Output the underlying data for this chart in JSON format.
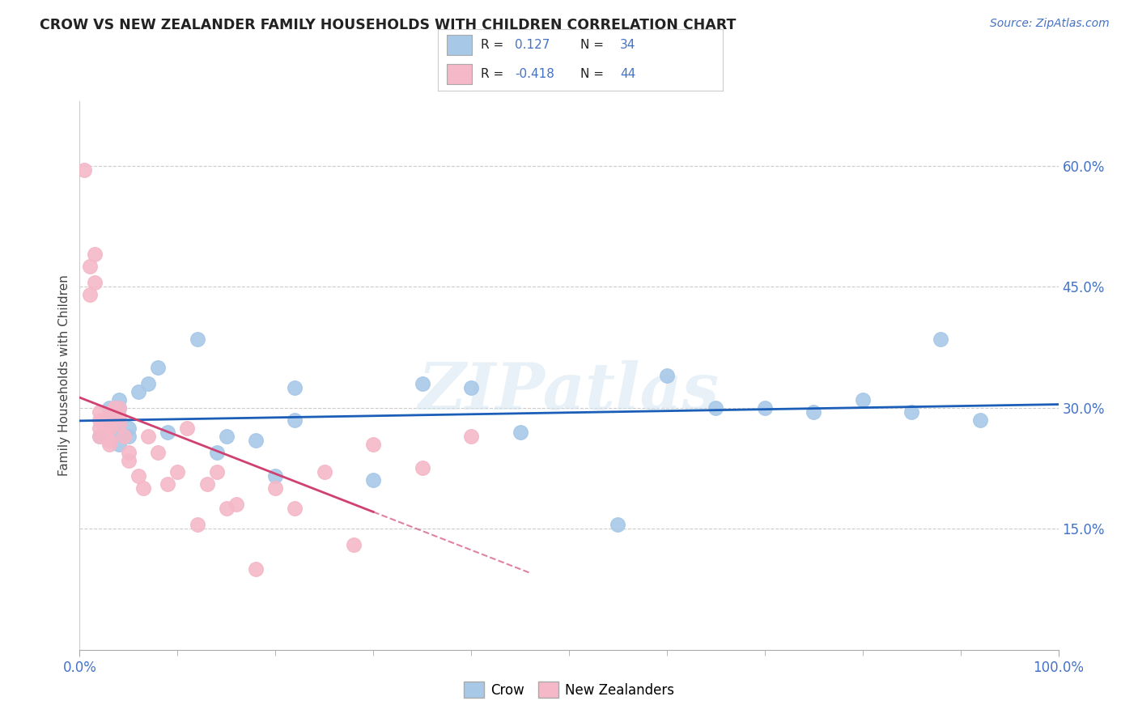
{
  "title": "CROW VS NEW ZEALANDER FAMILY HOUSEHOLDS WITH CHILDREN CORRELATION CHART",
  "source": "Source: ZipAtlas.com",
  "ylabel": "Family Households with Children",
  "xlim": [
    0.0,
    1.0
  ],
  "ylim": [
    0.0,
    0.68
  ],
  "ytick_positions": [
    0.15,
    0.3,
    0.45,
    0.6
  ],
  "ytick_labels": [
    "15.0%",
    "30.0%",
    "45.0%",
    "60.0%"
  ],
  "xtick_positions": [
    0.0,
    1.0
  ],
  "xtick_labels": [
    "0.0%",
    "100.0%"
  ],
  "crow_r": "0.127",
  "crow_n": "34",
  "nz_r": "-0.418",
  "nz_n": "44",
  "crow_color": "#a8c8e8",
  "nz_color": "#f4b8c8",
  "crow_line_color": "#1a5eb8",
  "nz_line_color": "#d04070",
  "tick_color": "#4472c4",
  "background_color": "#ffffff",
  "watermark": "ZIPatlas",
  "crow_points_x": [
    0.02,
    0.03,
    0.03,
    0.04,
    0.04,
    0.04,
    0.04,
    0.04,
    0.05,
    0.05,
    0.06,
    0.07,
    0.08,
    0.09,
    0.12,
    0.14,
    0.15,
    0.18,
    0.2,
    0.22,
    0.22,
    0.3,
    0.35,
    0.4,
    0.45,
    0.55,
    0.6,
    0.65,
    0.7,
    0.75,
    0.8,
    0.85,
    0.88,
    0.92
  ],
  "crow_points_y": [
    0.265,
    0.285,
    0.3,
    0.255,
    0.27,
    0.28,
    0.3,
    0.31,
    0.265,
    0.275,
    0.32,
    0.33,
    0.35,
    0.27,
    0.385,
    0.245,
    0.265,
    0.26,
    0.215,
    0.285,
    0.325,
    0.21,
    0.33,
    0.325,
    0.27,
    0.155,
    0.34,
    0.3,
    0.3,
    0.295,
    0.31,
    0.295,
    0.385,
    0.285
  ],
  "nz_points_x": [
    0.005,
    0.01,
    0.01,
    0.015,
    0.015,
    0.02,
    0.02,
    0.02,
    0.02,
    0.025,
    0.025,
    0.025,
    0.03,
    0.03,
    0.03,
    0.03,
    0.035,
    0.035,
    0.04,
    0.04,
    0.04,
    0.045,
    0.05,
    0.05,
    0.06,
    0.065,
    0.07,
    0.08,
    0.09,
    0.1,
    0.11,
    0.12,
    0.13,
    0.14,
    0.15,
    0.16,
    0.18,
    0.2,
    0.22,
    0.25,
    0.28,
    0.3,
    0.35,
    0.4
  ],
  "nz_points_y": [
    0.595,
    0.475,
    0.44,
    0.49,
    0.455,
    0.265,
    0.275,
    0.285,
    0.295,
    0.265,
    0.27,
    0.28,
    0.255,
    0.26,
    0.275,
    0.29,
    0.295,
    0.3,
    0.28,
    0.29,
    0.3,
    0.265,
    0.245,
    0.235,
    0.215,
    0.2,
    0.265,
    0.245,
    0.205,
    0.22,
    0.275,
    0.155,
    0.205,
    0.22,
    0.175,
    0.18,
    0.1,
    0.2,
    0.175,
    0.22,
    0.13,
    0.255,
    0.225,
    0.265
  ]
}
